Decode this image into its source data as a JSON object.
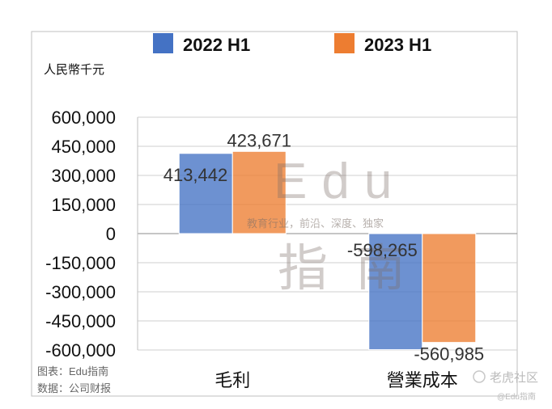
{
  "chart_data": {
    "type": "bar",
    "unit_label": "人民幣千元",
    "categories": [
      "毛利",
      "營業成本"
    ],
    "series": [
      {
        "name": "2022 H1",
        "color": "#4472c4",
        "values": [
          413442,
          -598265
        ],
        "labels": [
          "413,442",
          "-598,265"
        ]
      },
      {
        "name": "2023 H1",
        "color": "#ed7d31",
        "values": [
          423671,
          -560985
        ],
        "labels": [
          "423,671",
          "-560,985"
        ]
      }
    ],
    "ylim": [
      -600000,
      600000
    ],
    "yticks": [
      600000,
      450000,
      300000,
      150000,
      0,
      -150000,
      -300000,
      -450000,
      -600000
    ],
    "ytick_labels": [
      "600,000",
      "450,000",
      "300,000",
      "150,000",
      "0",
      "-150,000",
      "-300,000",
      "-450,000",
      "-600,000"
    ],
    "legend_position": "top",
    "grid": true
  },
  "source": {
    "chart_credit": "图表：Edu指南",
    "data_credit": "数据：公司财报"
  },
  "watermark": {
    "main": "Edu",
    "tagline": "教育行业，前沿、深度、独家",
    "chinese": "指南",
    "corner_brand": "老虎社区",
    "corner_handle": "@Edu指南"
  }
}
